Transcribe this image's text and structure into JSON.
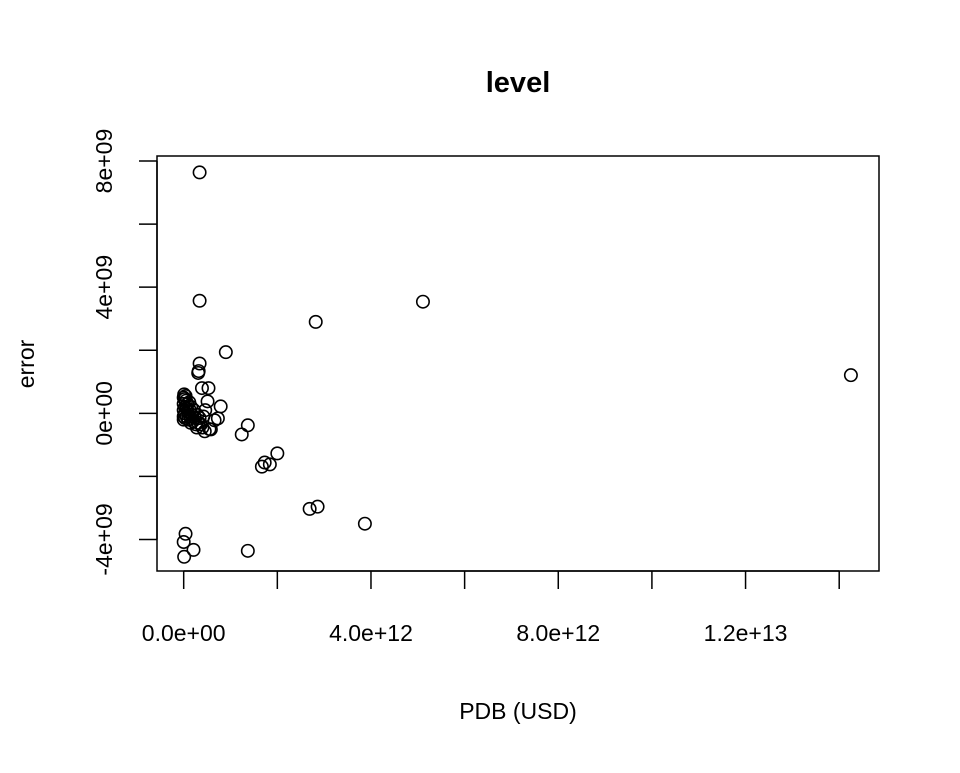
{
  "chart_data": {
    "type": "scatter",
    "title": "level",
    "xlabel": "PDB (USD)",
    "ylabel": "error",
    "xlim": [
      -570000000000.0,
      14850000000000.0
    ],
    "ylim": [
      -5000000000.0,
      8160000000.0
    ],
    "x_ticks": [
      0,
      2000000000000.0,
      4000000000000.0,
      6000000000000.0,
      8000000000000.0,
      10000000000000.0,
      12000000000000.0,
      14000000000000.0
    ],
    "x_tick_labels": [
      {
        "value": 0,
        "label": "0.0e+00"
      },
      {
        "value": 4000000000000.0,
        "label": "4.0e+12"
      },
      {
        "value": 8000000000000.0,
        "label": "8.0e+12"
      },
      {
        "value": 12000000000000.0,
        "label": "1.2e+13"
      }
    ],
    "y_ticks": [
      -4000000000.0,
      -2000000000.0,
      0,
      2000000000.0,
      4000000000.0,
      6000000000.0,
      8000000000.0
    ],
    "y_tick_labels": [
      {
        "value": -4000000000.0,
        "label": "-4e+09"
      },
      {
        "value": 0,
        "label": "0e+00"
      },
      {
        "value": 4000000000.0,
        "label": "4e+09"
      },
      {
        "value": 8000000000.0,
        "label": "8e+09"
      }
    ],
    "grid": false,
    "points": [
      [
        340000000000.0,
        7640000000.0
      ],
      [
        340000000000.0,
        3570000000.0
      ],
      [
        5110000000000.0,
        3540000000.0
      ],
      [
        2820000000000.0,
        2900000000.0
      ],
      [
        14250000000000.0,
        1210000000.0
      ],
      [
        900000000000.0,
        1940000000.0
      ],
      [
        340000000000.0,
        1580000000.0
      ],
      [
        320000000000.0,
        1340000000.0
      ],
      [
        310000000000.0,
        1280000000.0
      ],
      [
        390000000000.0,
        800000000.0
      ],
      [
        530000000000.0,
        800000000.0
      ],
      [
        510000000000.0,
        380000000.0
      ],
      [
        790000000000.0,
        220000000.0
      ],
      [
        660000000000.0,
        -220000000.0
      ],
      [
        730000000000.0,
        -160000000.0
      ],
      [
        1370000000000.0,
        -380000000.0
      ],
      [
        1240000000000.0,
        -670000000.0
      ],
      [
        550000000000.0,
        -500000000.0
      ],
      [
        450000000000.0,
        -570000000.0
      ],
      [
        580000000000.0,
        -510000000.0
      ],
      [
        2000000000000.0,
        -1270000000.0
      ],
      [
        1730000000000.0,
        -1560000000.0
      ],
      [
        1670000000000.0,
        -1690000000.0
      ],
      [
        1840000000000.0,
        -1620000000.0
      ],
      [
        2690000000000.0,
        -3030000000.0
      ],
      [
        2860000000000.0,
        -2960000000.0
      ],
      [
        3870000000000.0,
        -3500000000.0
      ],
      [
        40000000000.0,
        -3820000000.0
      ],
      [
        0,
        -4080000000.0
      ],
      [
        210000000000.0,
        -4330000000.0
      ],
      [
        1370000000000.0,
        -4360000000.0
      ],
      [
        10000000000.0,
        -4550000000.0
      ],
      [
        0,
        500000000.0
      ],
      [
        0,
        300000000.0
      ],
      [
        0,
        100000000.0
      ],
      [
        0,
        -100000000.0
      ],
      [
        0,
        -200000000.0
      ],
      [
        20000000000.0,
        450000000.0
      ],
      [
        30000000000.0,
        200000000.0
      ],
      [
        30000000000.0,
        0.0
      ],
      [
        30000000000.0,
        -150000000.0
      ],
      [
        50000000000.0,
        400000000.0
      ],
      [
        60000000000.0,
        150000000.0
      ],
      [
        60000000000.0,
        -100000000.0
      ],
      [
        80000000000.0,
        300000000.0
      ],
      [
        90000000000.0,
        50000000.0
      ],
      [
        100000000000.0,
        -200000000.0
      ],
      [
        120000000000.0,
        350000000.0
      ],
      [
        130000000000.0,
        100000000.0
      ],
      [
        140000000000.0,
        -100000000.0
      ],
      [
        160000000000.0,
        200000000.0
      ],
      [
        180000000000.0,
        -50000000.0
      ],
      [
        200000000000.0,
        -250000000.0
      ],
      [
        220000000000.0,
        100000000.0
      ],
      [
        240000000000.0,
        -150000000.0
      ],
      [
        260000000000.0,
        -350000000.0
      ],
      [
        290000000000.0,
        -50000000.0
      ],
      [
        310000000000.0,
        -300000000.0
      ],
      [
        340000000000.0,
        -150000000.0
      ],
      [
        370000000000.0,
        -350000000.0
      ],
      [
        420000000000.0,
        -100000000.0
      ],
      [
        10000000000.0,
        600000000.0
      ],
      [
        40000000000.0,
        550000000.0
      ],
      [
        150000000000.0,
        -300000000.0
      ],
      [
        280000000000.0,
        -450000000.0
      ],
      [
        400000000000.0,
        -450000000.0
      ],
      [
        460000000000.0,
        100000000.0
      ]
    ]
  }
}
